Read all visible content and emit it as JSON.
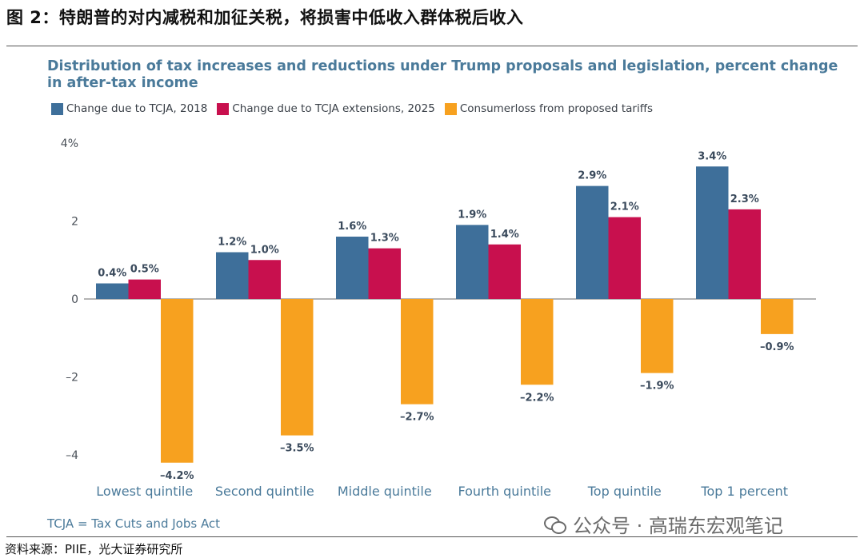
{
  "figure_title": "图 2：特朗普的对内减税和加征关税，将损害中低收入群体税后收入",
  "source": "资料来源：PIIE，光大证券研究所",
  "watermark": "公众号 · 高瑞东宏观笔记",
  "note": "TCJA = Tax Cuts and Jobs Act",
  "colors": {
    "series1": "#3e6f9a",
    "series2": "#c8104e",
    "series3": "#f7a11f",
    "title": "#4a7a9a"
  },
  "chart_data": {
    "type": "bar",
    "title": "Distribution of tax increases and reductions under Trump proposals and legislation, percent change in after-tax income",
    "categories": [
      "Lowest quintile",
      "Second quintile",
      "Middle quintile",
      "Fourth quintile",
      "Top quintile",
      "Top 1 percent"
    ],
    "series": [
      {
        "name": "Change due to TCJA, 2018",
        "values": [
          0.4,
          1.2,
          1.6,
          1.9,
          2.9,
          3.4
        ],
        "labels": [
          "0.4%",
          "1.2%",
          "1.6%",
          "1.9%",
          "2.9%",
          "3.4%"
        ]
      },
      {
        "name": "Change due to TCJA extensions, 2025",
        "values": [
          0.5,
          1.0,
          1.3,
          1.4,
          2.1,
          2.3
        ],
        "labels": [
          "0.5%",
          "1.0%",
          "1.3%",
          "1.4%",
          "2.1%",
          "2.3%"
        ]
      },
      {
        "name": "Consumerloss from proposed tariffs",
        "values": [
          -4.2,
          -3.5,
          -2.7,
          -2.2,
          -1.9,
          -0.9
        ],
        "labels": [
          "–4.2%",
          "–3.5%",
          "–2.7%",
          "–2.2%",
          "–1.9%",
          "–0.9%"
        ]
      }
    ],
    "yticks": [
      4,
      2,
      0,
      -2,
      -4
    ],
    "ytick_labels": [
      "4%",
      "2",
      "0",
      "–2",
      "–4"
    ],
    "ylim": [
      -4.4,
      4.2
    ],
    "xlabel": "",
    "ylabel": "",
    "grid": false,
    "legend_position": "top-left"
  }
}
